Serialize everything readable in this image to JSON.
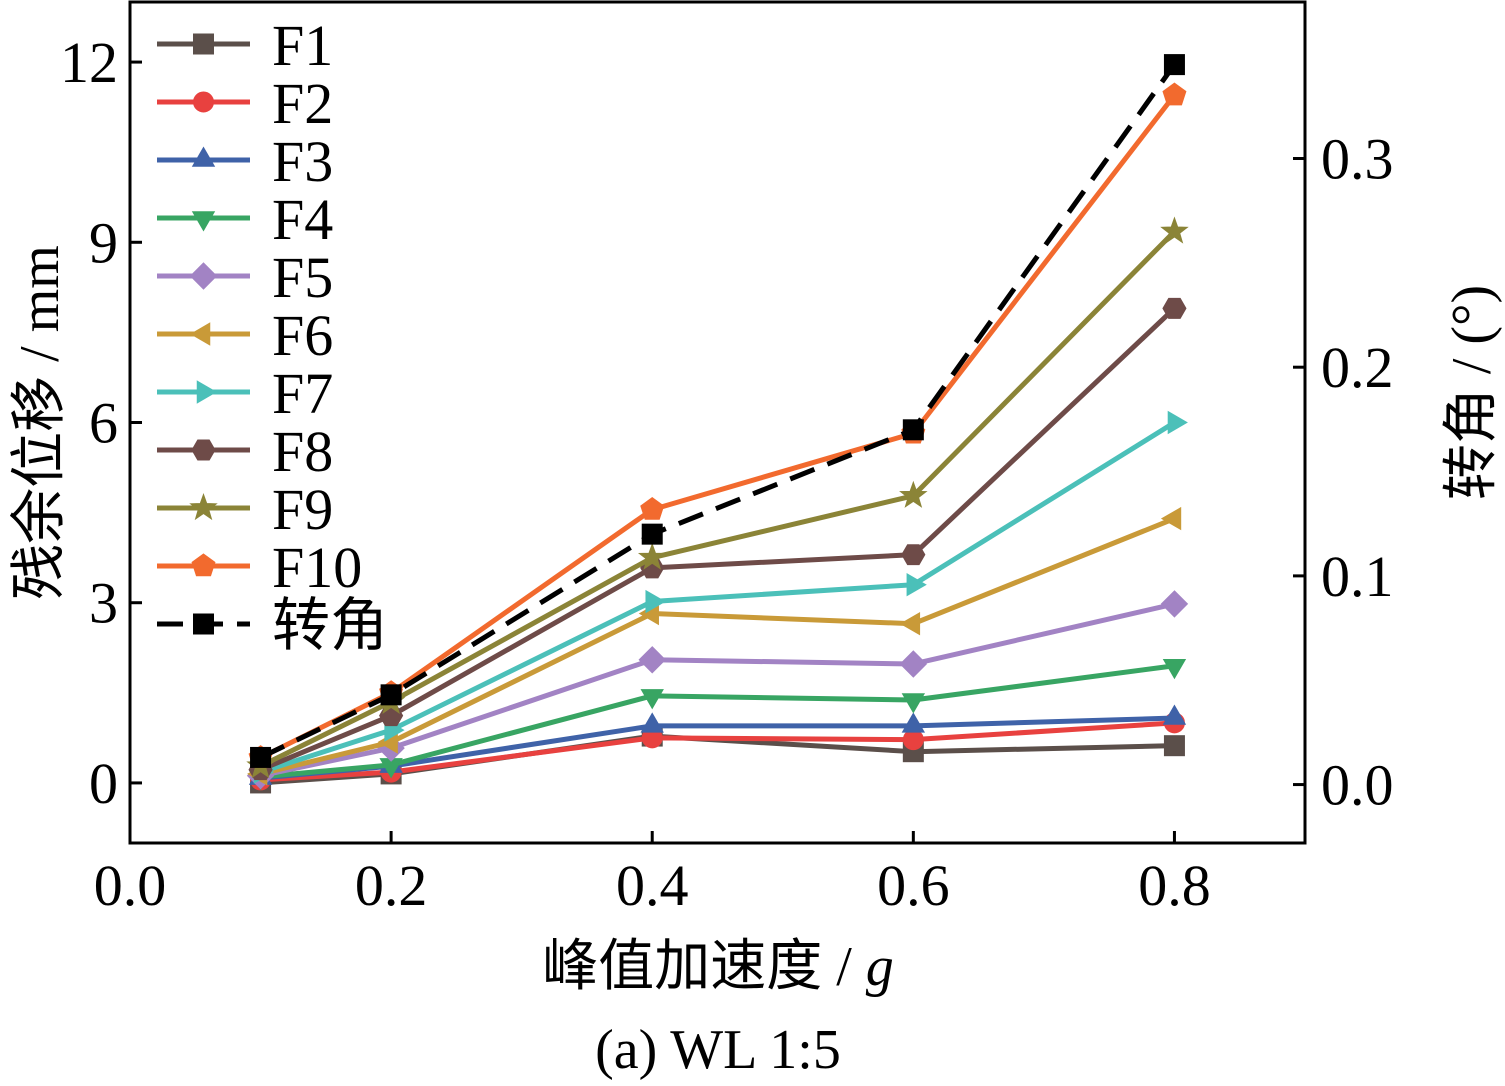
{
  "chart_data": {
    "type": "line",
    "caption": "(a) WL 1:5",
    "xlabel": "峰值加速度 / ",
    "xlabel_unit": "g",
    "ylabel": "残余位移 / mm",
    "y2label": "转角 / (°)",
    "xlim": [
      0.0,
      0.9
    ],
    "ylim": [
      -1.0,
      13.0
    ],
    "y2lim": [
      -0.028,
      0.375
    ],
    "xticks": [
      "0.0",
      "0.2",
      "0.4",
      "0.6",
      "0.8"
    ],
    "yticks": [
      "0",
      "3",
      "6",
      "9",
      "12"
    ],
    "y2ticks": [
      "0.0",
      "0.1",
      "0.2",
      "0.3"
    ],
    "x": [
      0.1,
      0.2,
      0.4,
      0.6,
      0.8
    ],
    "legend_position": "top-left",
    "grid": false,
    "series": [
      {
        "name": "F1",
        "axis": "left",
        "color": "#5b4f4a",
        "marker": "square",
        "dash": false,
        "values": [
          0.0,
          0.15,
          0.78,
          0.52,
          0.62
        ]
      },
      {
        "name": "F2",
        "axis": "left",
        "color": "#e8413f",
        "marker": "circle",
        "dash": false,
        "values": [
          0.05,
          0.18,
          0.75,
          0.72,
          1.0
        ]
      },
      {
        "name": "F3",
        "axis": "left",
        "color": "#3f62a8",
        "marker": "triangle-up",
        "dash": false,
        "values": [
          0.08,
          0.28,
          0.95,
          0.95,
          1.08
        ]
      },
      {
        "name": "F4",
        "axis": "left",
        "color": "#38a563",
        "marker": "triangle-down",
        "dash": false,
        "values": [
          0.1,
          0.3,
          1.45,
          1.38,
          1.95
        ]
      },
      {
        "name": "F5",
        "axis": "left",
        "color": "#a283c4",
        "marker": "diamond",
        "dash": false,
        "values": [
          0.12,
          0.58,
          2.05,
          1.98,
          2.98
        ]
      },
      {
        "name": "F6",
        "axis": "left",
        "color": "#c99a38",
        "marker": "triangle-left",
        "dash": false,
        "values": [
          0.15,
          0.68,
          2.82,
          2.65,
          4.4
        ]
      },
      {
        "name": "F7",
        "axis": "left",
        "color": "#4bc0b9",
        "marker": "triangle-right",
        "dash": false,
        "values": [
          0.18,
          0.88,
          3.02,
          3.3,
          6.0
        ]
      },
      {
        "name": "F8",
        "axis": "left",
        "color": "#6e4b48",
        "marker": "hexagon",
        "dash": false,
        "values": [
          0.22,
          1.12,
          3.58,
          3.8,
          7.9
        ]
      },
      {
        "name": "F9",
        "axis": "left",
        "color": "#8b8437",
        "marker": "star",
        "dash": false,
        "values": [
          0.28,
          1.35,
          3.75,
          4.78,
          9.18
        ]
      },
      {
        "name": "F10",
        "axis": "left",
        "color": "#f26a2e",
        "marker": "pentagon",
        "dash": false,
        "values": [
          0.42,
          1.5,
          4.55,
          5.82,
          11.45
        ]
      },
      {
        "name": "转角",
        "axis": "right",
        "color": "#000000",
        "marker": "square",
        "dash": true,
        "values": [
          0.013,
          0.043,
          0.12,
          0.17,
          0.345
        ]
      }
    ]
  }
}
